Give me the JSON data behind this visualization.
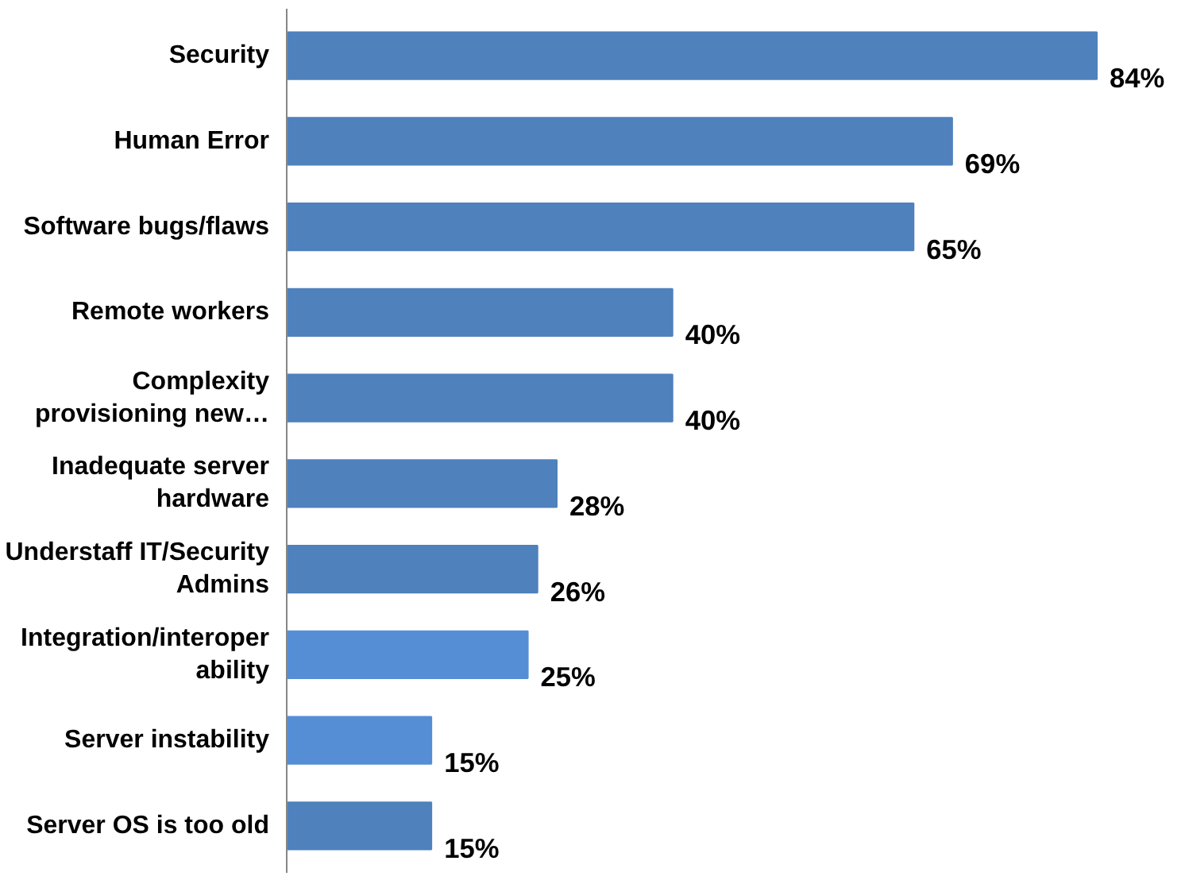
{
  "chart_data": {
    "type": "bar",
    "orientation": "horizontal",
    "categories": [
      "Security",
      "Human Error",
      "Software bugs/flaws",
      "Remote workers",
      "Complexity\nprovisioning new…",
      "Inadequate server\nhardware",
      "Understaff IT/Security\nAdmins",
      "Integration/interoper\nability",
      "Server instability",
      "Server OS is too old"
    ],
    "values": [
      84,
      69,
      65,
      40,
      40,
      28,
      26,
      25,
      15,
      15
    ],
    "value_labels": [
      "84%",
      "69%",
      "65%",
      "40%",
      "40%",
      "28%",
      "26%",
      "25%",
      "15%",
      "15%"
    ],
    "colors": [
      "#4f81bd",
      "#4f81bd",
      "#4f81bd",
      "#4f81bd",
      "#4f81bd",
      "#4f81bd",
      "#4f81bd",
      "#558ed5",
      "#558ed5",
      "#4f81bd"
    ],
    "grid": false
  }
}
